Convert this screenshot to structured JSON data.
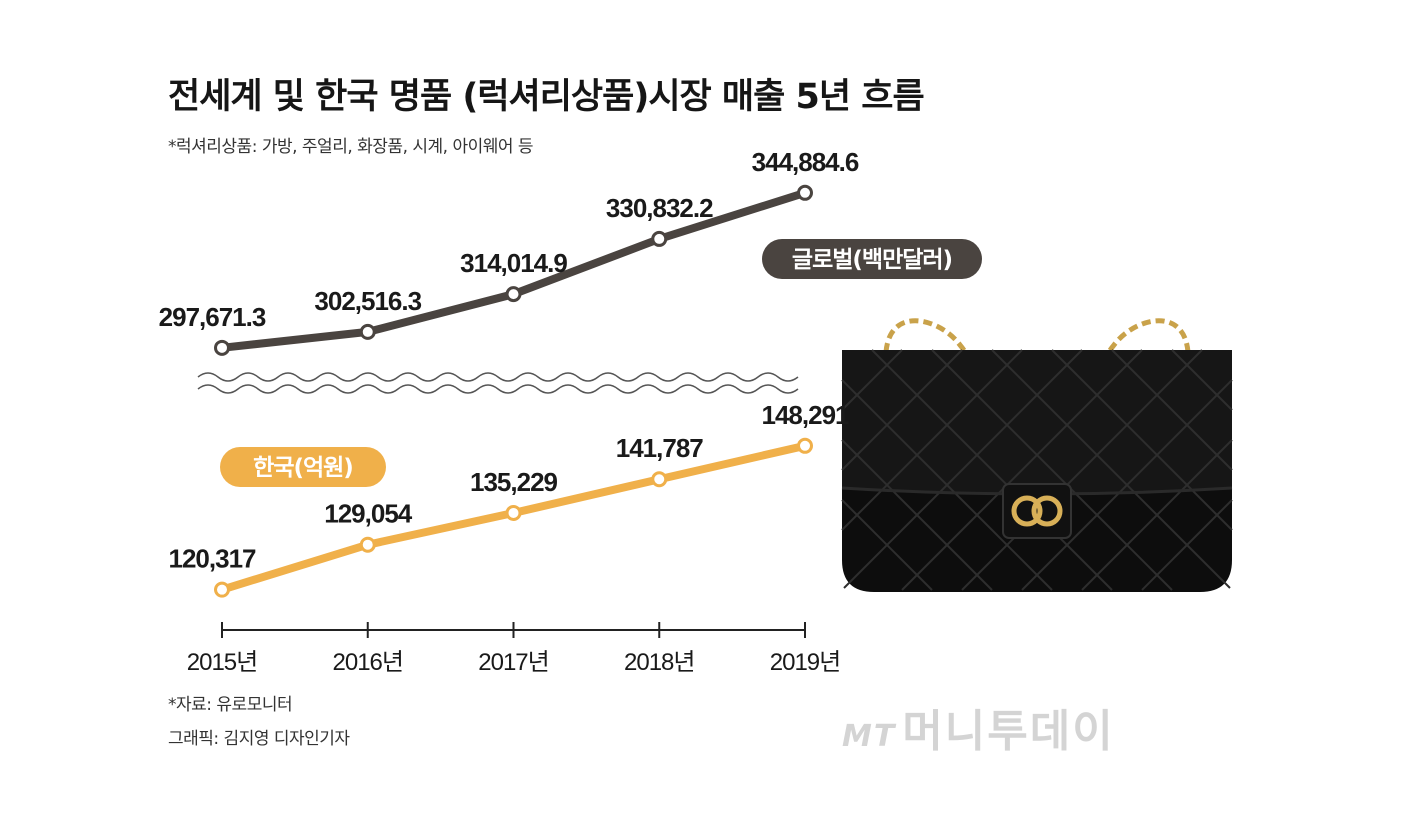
{
  "header": {
    "title": "전세계 및 한국 명품 (럭셔리상품)시장 매출 5년 흐름",
    "subtitle": "*럭셔리상품: 가방, 주얼리, 화장품, 시계, 아이웨어 등"
  },
  "footer": {
    "source": "*자료: 유로모니터",
    "credit": "그래픽: 김지영 디자인기자"
  },
  "watermark": {
    "mark": "MT",
    "text": "머니투데이"
  },
  "colors": {
    "global": "#4a4440",
    "korea": "#f0b04a",
    "bag": "#0d0d0d",
    "gold": "#c9a24a"
  },
  "image": {
    "subject": "bag-photo"
  },
  "chart_data": {
    "type": "line",
    "categories": [
      "2015년",
      "2016년",
      "2017년",
      "2018년",
      "2019년"
    ],
    "x": [
      2015,
      2016,
      2017,
      2018,
      2019
    ],
    "series": [
      {
        "name": "글로벌(백만달러)",
        "values": [
          297671.3,
          302516.3,
          314014.9,
          330832.2,
          344884.6
        ],
        "labels": [
          "297,671.3",
          "302,516.3",
          "314,014.9",
          "330,832.2",
          "344,884.6"
        ]
      },
      {
        "name": "한국(억원)",
        "values": [
          120317,
          129054,
          135229,
          141787,
          148291
        ],
        "labels": [
          "120,317",
          "129,054",
          "135,229",
          "141,787",
          "148,291"
        ]
      }
    ],
    "axis_break": true,
    "grid": false
  }
}
